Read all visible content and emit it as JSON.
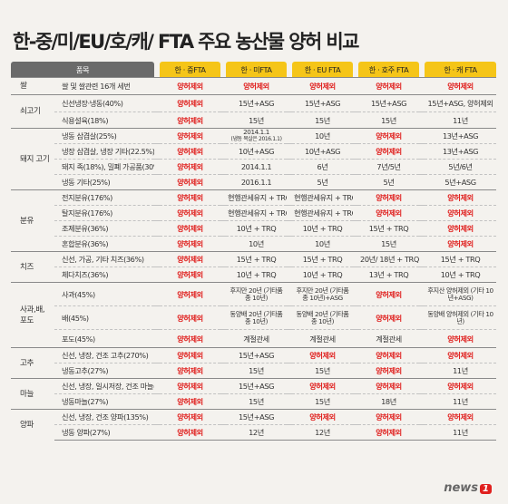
{
  "title": "한-중/미/EU/호/캐/ FTA 주요 농산물 양허 비교",
  "headers": [
    "품목",
    "한 · 중FTA",
    "한 · 미FTA",
    "한 · EU FTA",
    "한 · 호주 FTA",
    "한 · 캐 FTA"
  ],
  "rows": [
    {
      "cat": "쌀",
      "item": "쌀 및 쌀관련 16개 세번",
      "cells": [
        "양허제외",
        "양허제외",
        "양허제외",
        "양허제외",
        "양허제외"
      ],
      "red": [
        true,
        true,
        true,
        true,
        true
      ]
    },
    {
      "cat": "쇠고기",
      "item": "신선냉장·냉동(40%)",
      "cells": [
        "양허제외",
        "15년+ASG",
        "15년+ASG",
        "15년+ASG",
        "15년+ASG, 양허제외"
      ],
      "red": [
        true,
        false,
        false,
        false,
        false
      ]
    },
    {
      "cat": "",
      "item": "식용설육(18%)",
      "cells": [
        "양허제외",
        "15년",
        "15년",
        "15년",
        "11년"
      ],
      "red": [
        true,
        false,
        false,
        false,
        false
      ]
    },
    {
      "cat": "돼지 고기",
      "item": "냉동 삼겹살(25%)",
      "cells": [
        "양허제외",
        "2014.1.1",
        "10년",
        "양허제외",
        "13년+ASG"
      ],
      "sub": "(냉동 목살은 2016.1.1)",
      "red": [
        true,
        false,
        false,
        true,
        false
      ]
    },
    {
      "cat": "",
      "item": "냉장 삼겹살, 냉장 기타(22.5%)",
      "cells": [
        "양허제외",
        "10년+ASG",
        "10년+ASG",
        "양허제외",
        "13년+ASG"
      ],
      "red": [
        true,
        false,
        false,
        true,
        false
      ]
    },
    {
      "cat": "",
      "item": "돼지 족(18%), 밀폐 가공품(30%)",
      "cells": [
        "양허제외",
        "2014.1.1",
        "6년",
        "7년/5년",
        "5년/6년"
      ],
      "red": [
        true,
        false,
        false,
        false,
        false
      ]
    },
    {
      "cat": "",
      "item": "냉동 기타(25%)",
      "cells": [
        "양허제외",
        "2016.1.1",
        "5년",
        "5년",
        "5년+ASG"
      ],
      "red": [
        true,
        false,
        false,
        false,
        false
      ]
    },
    {
      "cat": "분유",
      "item": "전지분유(176%)",
      "cells": [
        "양허제외",
        "현행관세유지 + TRQ",
        "현행관세유지 + TRQ",
        "양허제외",
        "양허제외"
      ],
      "red": [
        true,
        false,
        false,
        true,
        true
      ]
    },
    {
      "cat": "",
      "item": "탈지분유(176%)",
      "cells": [
        "양허제외",
        "현행관세유지 + TRQ",
        "현행관세유지 + TRQ",
        "양허제외",
        "양허제외"
      ],
      "red": [
        true,
        false,
        false,
        true,
        true
      ]
    },
    {
      "cat": "",
      "item": "조제분유(36%)",
      "cells": [
        "양허제외",
        "10년 + TRQ",
        "10년 + TRQ",
        "15년 + TRQ",
        "양허제외"
      ],
      "red": [
        true,
        false,
        false,
        false,
        true
      ]
    },
    {
      "cat": "",
      "item": "혼합분유(36%)",
      "cells": [
        "양허제외",
        "10년",
        "10년",
        "15년",
        "양허제외"
      ],
      "red": [
        true,
        false,
        false,
        false,
        true
      ]
    },
    {
      "cat": "치즈",
      "item": "신선, 가공, 기타 치즈(36%)",
      "cells": [
        "양허제외",
        "15년 + TRQ",
        "15년 + TRQ",
        "20년/ 18년 + TRQ",
        "15년 + TRQ"
      ],
      "red": [
        true,
        false,
        false,
        false,
        false
      ]
    },
    {
      "cat": "",
      "item": "체다치즈(36%)",
      "cells": [
        "양허제외",
        "10년 + TRQ",
        "10년 + TRQ",
        "13년 + TRQ",
        "10년 + TRQ"
      ],
      "red": [
        true,
        false,
        false,
        false,
        false
      ]
    },
    {
      "cat": "사과,배, 포도",
      "item": "사과(45%)",
      "cells": [
        "양허제외",
        "후지만 20년 (기타품종 10년)",
        "후지만 20년 (기타품종 10년)+ASG",
        "양허제외",
        "후지산 양허제외 (기타 10년+ASG)"
      ],
      "red": [
        true,
        false,
        false,
        true,
        false
      ]
    },
    {
      "cat": "",
      "item": "배(45%)",
      "cells": [
        "양허제외",
        "동양배 20년 (기타품종 10년)",
        "동양배 20년 (기타품종 10년)",
        "양허제외",
        "동양배 양허제외 (기타 10년)"
      ],
      "red": [
        true,
        false,
        false,
        true,
        false
      ]
    },
    {
      "cat": "",
      "item": "포도(45%)",
      "cells": [
        "양허제외",
        "계절관세",
        "계절관세",
        "계절관세",
        "양허제외"
      ],
      "red": [
        true,
        false,
        false,
        false,
        true
      ]
    },
    {
      "cat": "고추",
      "item": "신선, 냉장, 건조 고추(270%)",
      "cells": [
        "양허제외",
        "15년+ASG",
        "양허제외",
        "양허제외",
        "양허제외"
      ],
      "red": [
        true,
        false,
        true,
        true,
        true
      ]
    },
    {
      "cat": "",
      "item": "냉동고추(27%)",
      "cells": [
        "양허제외",
        "15년",
        "15년",
        "양허제외",
        "11년"
      ],
      "red": [
        true,
        false,
        false,
        true,
        false
      ]
    },
    {
      "cat": "마늘",
      "item": "신선, 냉장, 일시저장, 건조 마늘(360%)",
      "cells": [
        "양허제외",
        "15년+ASG",
        "양허제외",
        "양허제외",
        "양허제외"
      ],
      "red": [
        true,
        false,
        true,
        true,
        true
      ]
    },
    {
      "cat": "",
      "item": "냉동마늘(27%)",
      "cells": [
        "양허제외",
        "15년",
        "15년",
        "18년",
        "11년"
      ],
      "red": [
        true,
        false,
        false,
        false,
        false
      ]
    },
    {
      "cat": "양파",
      "item": "신선, 냉장, 건조 양파(135%)",
      "cells": [
        "양허제외",
        "15년+ASG",
        "양허제외",
        "양허제외",
        "양허제외"
      ],
      "red": [
        true,
        false,
        true,
        true,
        true
      ]
    },
    {
      "cat": "",
      "item": "냉동 양파(27%)",
      "cells": [
        "양허제외",
        "12년",
        "12년",
        "양허제외",
        "11년"
      ],
      "red": [
        true,
        false,
        false,
        true,
        false
      ]
    }
  ],
  "groups": [
    [
      0,
      1
    ],
    [
      1,
      2
    ],
    [
      3,
      4
    ],
    [
      7,
      4
    ],
    [
      11,
      2
    ],
    [
      13,
      3
    ],
    [
      16,
      2
    ],
    [
      18,
      2
    ],
    [
      20,
      2
    ]
  ],
  "logo": {
    "text": "news",
    "mark": "1"
  },
  "colors": {
    "accent": "#f5c518",
    "red": "#e0201e",
    "header": "#6a6a6a"
  }
}
